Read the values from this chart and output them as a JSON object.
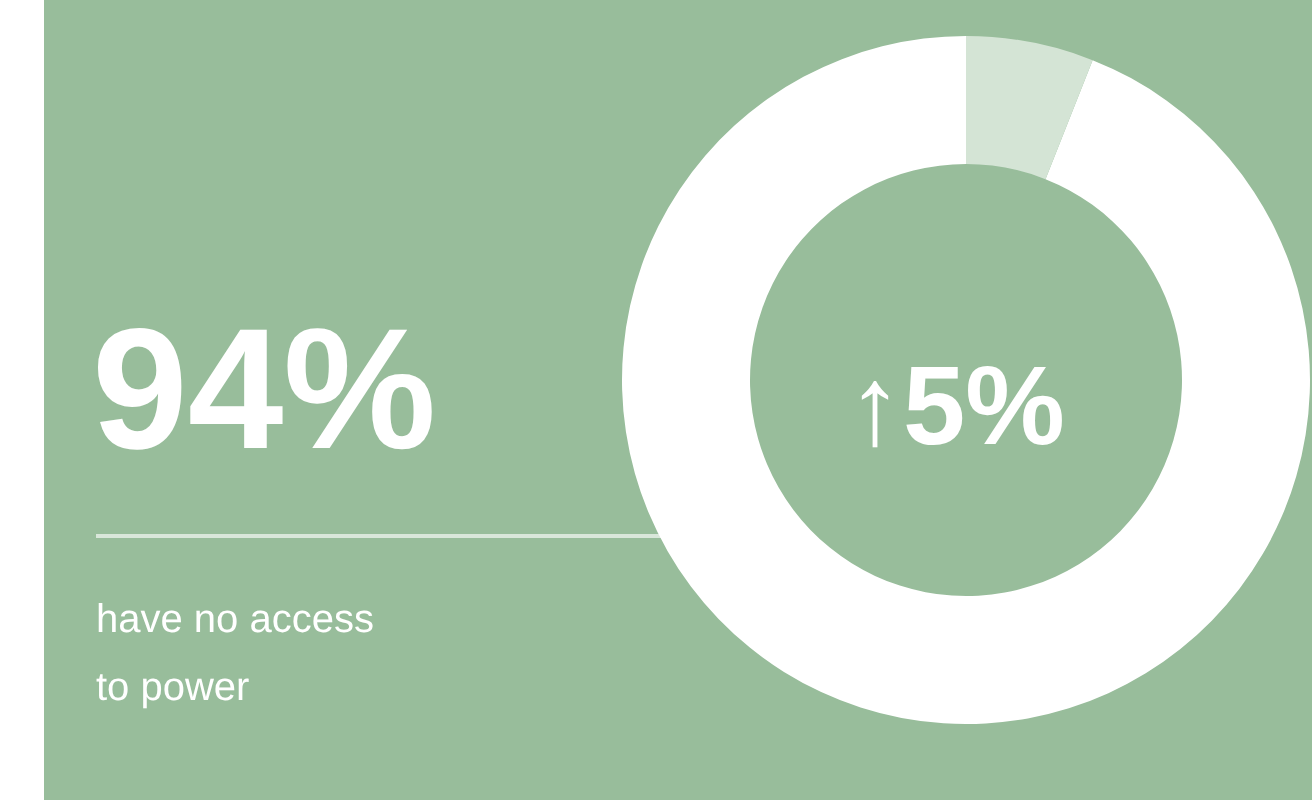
{
  "chart_data": {
    "type": "donut",
    "categories": [
      "have no access to power",
      null
    ],
    "values": [
      94,
      6
    ],
    "value_labels": [
      "94%",
      null
    ],
    "colors": [
      "#ffffff",
      "#d4e4d5"
    ],
    "annotations": [
      "↑5%"
    ]
  }
}
